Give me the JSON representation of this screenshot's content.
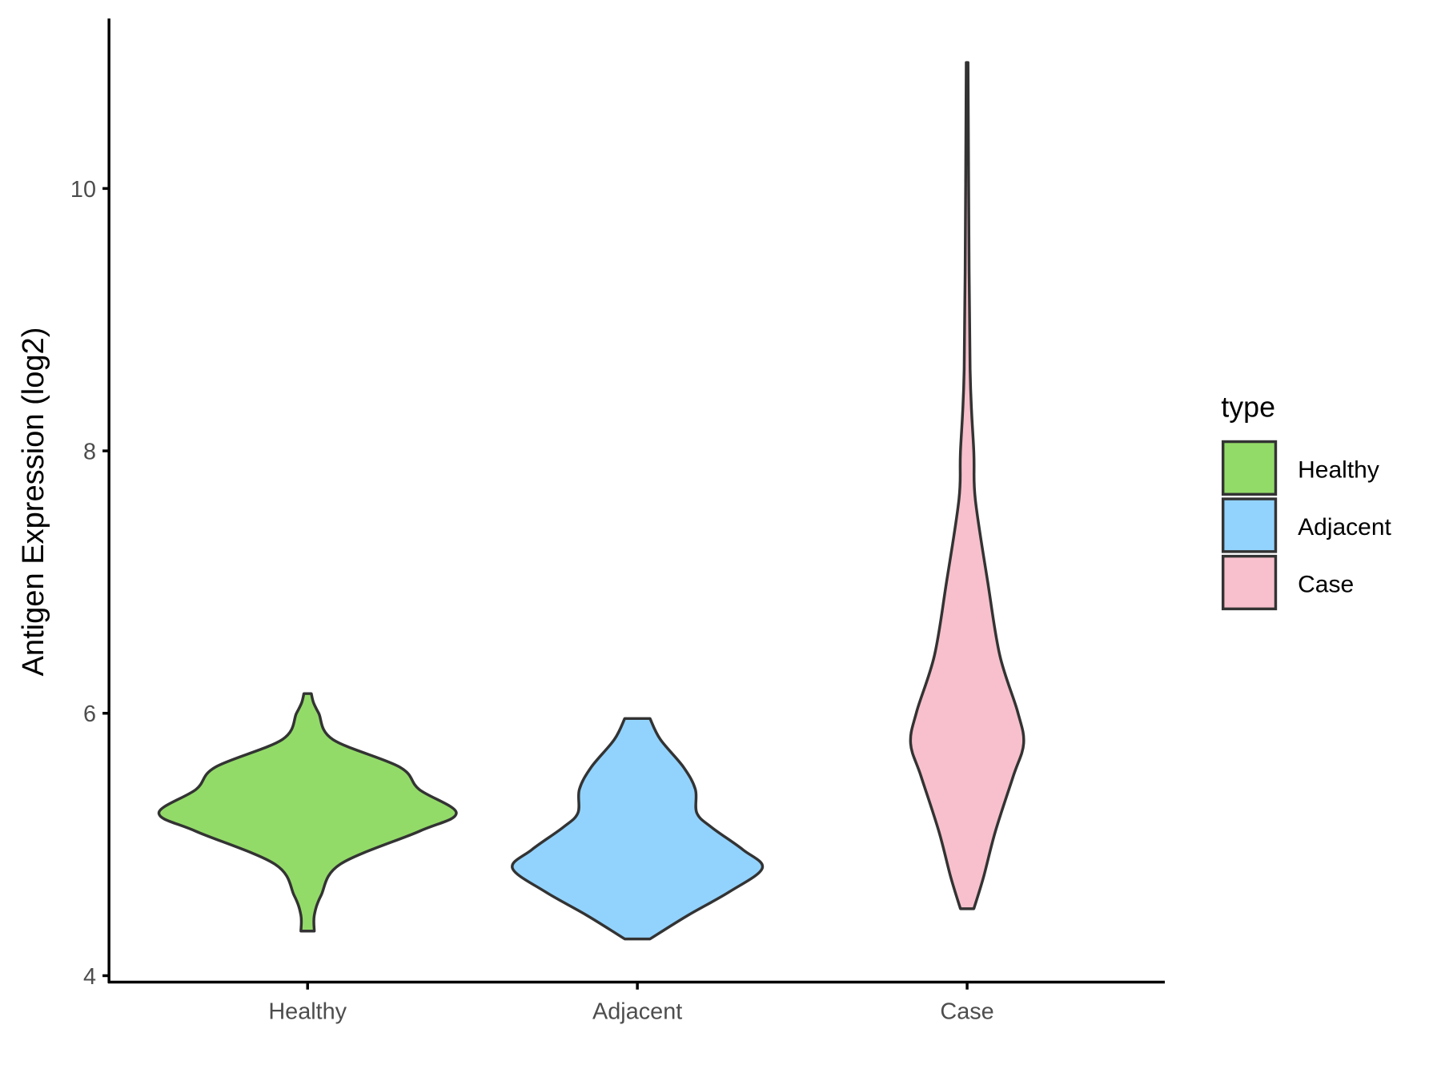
{
  "chart_data": {
    "type": "violin",
    "title": "",
    "xlabel": "",
    "ylabel": "Antigen Expression (log2)",
    "ylim": [
      3.95,
      11.3
    ],
    "yticks": [
      4,
      6,
      8,
      10
    ],
    "ytick_labels": [
      "4",
      "6",
      "8",
      "10"
    ],
    "categories": [
      "Healthy",
      "Adjacent",
      "Case"
    ],
    "legend": {
      "title": "type",
      "position": "right",
      "entries": [
        "Healthy",
        "Adjacent",
        "Case"
      ]
    },
    "grid": false,
    "series": [
      {
        "name": "Healthy",
        "color": "#93DB69",
        "profile": [
          [
            6.15,
            0.025
          ],
          [
            6.08,
            0.04
          ],
          [
            6.0,
            0.075
          ],
          [
            5.8,
            0.17
          ],
          [
            5.59,
            0.62
          ],
          [
            5.42,
            0.75
          ],
          [
            5.24,
            1.0
          ],
          [
            5.1,
            0.75
          ],
          [
            4.85,
            0.22
          ],
          [
            4.61,
            0.09
          ],
          [
            4.46,
            0.045
          ],
          [
            4.34,
            0.045
          ]
        ]
      },
      {
        "name": "Adjacent",
        "color": "#92D3FE",
        "profile": [
          [
            5.96,
            0.085
          ],
          [
            5.8,
            0.155
          ],
          [
            5.59,
            0.31
          ],
          [
            5.42,
            0.39
          ],
          [
            5.24,
            0.4
          ],
          [
            5.13,
            0.5
          ],
          [
            4.96,
            0.71
          ],
          [
            4.82,
            0.84
          ],
          [
            4.64,
            0.62
          ],
          [
            4.46,
            0.34
          ],
          [
            4.28,
            0.085
          ]
        ]
      },
      {
        "name": "Case",
        "color": "#F7C0CC",
        "profile": [
          [
            10.96,
            0.006
          ],
          [
            10.03,
            0.01
          ],
          [
            8.62,
            0.02
          ],
          [
            7.99,
            0.045
          ],
          [
            7.63,
            0.055
          ],
          [
            6.99,
            0.14
          ],
          [
            6.44,
            0.22
          ],
          [
            6.01,
            0.34
          ],
          [
            5.77,
            0.38
          ],
          [
            5.52,
            0.31
          ],
          [
            5.1,
            0.19
          ],
          [
            4.75,
            0.11
          ],
          [
            4.51,
            0.045
          ]
        ]
      }
    ]
  }
}
